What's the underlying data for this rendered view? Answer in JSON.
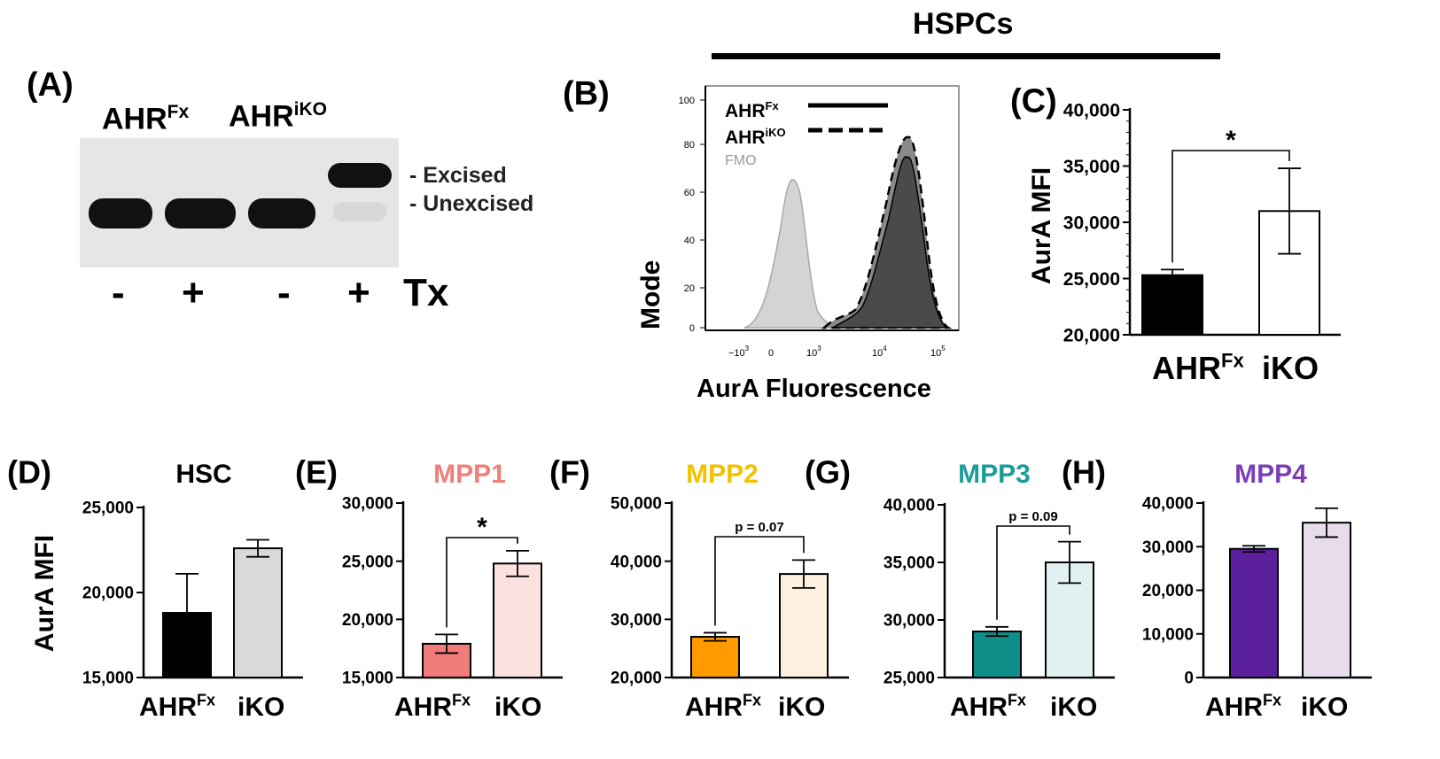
{
  "header": {
    "title": "HSPCs"
  },
  "panelA": {
    "letter": "(A)",
    "lane_groups": [
      {
        "label": "AHR",
        "sup": "Fx"
      },
      {
        "label": "AHR",
        "sup": "iKO"
      }
    ],
    "band_labels": [
      "- Excised",
      "- Unexcised"
    ],
    "treatment": [
      "-",
      "+",
      "-",
      "+"
    ],
    "treatment_label": "Tx",
    "colors": {
      "blot_bg": "#e6e6e6",
      "band": "#0d0d0d"
    }
  },
  "panelB": {
    "letter": "(B)",
    "ylabel": "Mode",
    "xlabel": "AurA Fluorescence",
    "y_ticks": [
      "0",
      "20",
      "40",
      "60",
      "80",
      "100"
    ],
    "legend": [
      {
        "label": "AHR",
        "sup": "Fx",
        "style": "solid"
      },
      {
        "label": "AHR",
        "sup": "iKO",
        "style": "dashed"
      },
      {
        "label": "FMO",
        "sup": "",
        "style": "gray"
      }
    ]
  },
  "chart_data": [
    {
      "id": "C",
      "letter": "(C)",
      "type": "bar",
      "title": "",
      "ylabel": "AurA MFI",
      "ylim": [
        20000,
        40000
      ],
      "yticks": [
        20000,
        25000,
        30000,
        35000,
        40000
      ],
      "ytick_labels": [
        "20,000",
        "25,000",
        "30,000",
        "35,000",
        "40,000"
      ],
      "categories": [
        {
          "label": "AHR",
          "sup": "Fx"
        },
        {
          "label": "iKO",
          "sup": ""
        }
      ],
      "values": [
        25300,
        31000
      ],
      "errors": [
        500,
        3800
      ],
      "fills": [
        "#000000",
        "#ffffff"
      ],
      "title_color": "#000000",
      "sig": "*"
    },
    {
      "id": "D",
      "letter": "(D)",
      "type": "bar",
      "title": "HSC",
      "ylabel": "AurA MFI",
      "ylim": [
        15000,
        25000
      ],
      "yticks": [
        15000,
        20000,
        25000
      ],
      "ytick_labels": [
        "15,000",
        "20,000",
        "25,000"
      ],
      "categories": [
        {
          "label": "AHR",
          "sup": "Fx"
        },
        {
          "label": "iKO",
          "sup": ""
        }
      ],
      "values": [
        18800,
        22600
      ],
      "errors": [
        2300,
        500
      ],
      "fills": [
        "#000000",
        "#d9d9d9"
      ],
      "title_color": "#000000",
      "sig": ""
    },
    {
      "id": "E",
      "letter": "(E)",
      "type": "bar",
      "title": "MPP1",
      "ylabel": "",
      "ylim": [
        15000,
        30000
      ],
      "yticks": [
        15000,
        20000,
        25000,
        30000
      ],
      "ytick_labels": [
        "15,000",
        "20,000",
        "25,000",
        "30,000"
      ],
      "categories": [
        {
          "label": "AHR",
          "sup": "Fx"
        },
        {
          "label": "iKO",
          "sup": ""
        }
      ],
      "values": [
        17900,
        24800
      ],
      "errors": [
        800,
        1100
      ],
      "fills": [
        "#f27c7c",
        "#fde0e0"
      ],
      "title_color": "#f07f7a",
      "sig": "*"
    },
    {
      "id": "F",
      "letter": "(F)",
      "type": "bar",
      "title": "MPP2",
      "ylabel": "",
      "ylim": [
        20000,
        50000
      ],
      "yticks": [
        20000,
        30000,
        40000,
        50000
      ],
      "ytick_labels": [
        "20,000",
        "30,000",
        "40,000",
        "50,000"
      ],
      "categories": [
        {
          "label": "AHR",
          "sup": "Fx"
        },
        {
          "label": "iKO",
          "sup": ""
        }
      ],
      "values": [
        27000,
        37800
      ],
      "errors": [
        700,
        2400
      ],
      "fills": [
        "#ff9a00",
        "#fdf0df"
      ],
      "title_color": "#f2c200",
      "sig": "p = 0.07"
    },
    {
      "id": "G",
      "letter": "(G)",
      "type": "bar",
      "title": "MPP3",
      "ylabel": "",
      "ylim": [
        25000,
        40000
      ],
      "yticks": [
        25000,
        30000,
        35000,
        40000
      ],
      "ytick_labels": [
        "25,000",
        "30,000",
        "35,000",
        "40,000"
      ],
      "categories": [
        {
          "label": "AHR",
          "sup": "Fx"
        },
        {
          "label": "iKO",
          "sup": ""
        }
      ],
      "values": [
        29000,
        35000
      ],
      "errors": [
        400,
        1800
      ],
      "fills": [
        "#0f8f8a",
        "#e1f1f1"
      ],
      "title_color": "#1a9d98",
      "sig": "p = 0.09"
    },
    {
      "id": "H",
      "letter": "(H)",
      "type": "bar",
      "title": "MPP4",
      "ylabel": "",
      "ylim": [
        0,
        40000
      ],
      "yticks": [
        0,
        10000,
        20000,
        30000,
        40000
      ],
      "ytick_labels": [
        "0",
        "10,000",
        "20,000",
        "30,000",
        "40,000"
      ],
      "categories": [
        {
          "label": "AHR",
          "sup": "Fx"
        },
        {
          "label": "iKO",
          "sup": ""
        }
      ],
      "values": [
        29500,
        35500
      ],
      "errors": [
        700,
        3300
      ],
      "fills": [
        "#5b1f9c",
        "#e6dcec"
      ],
      "title_color": "#7c3eb8",
      "sig": ""
    }
  ]
}
